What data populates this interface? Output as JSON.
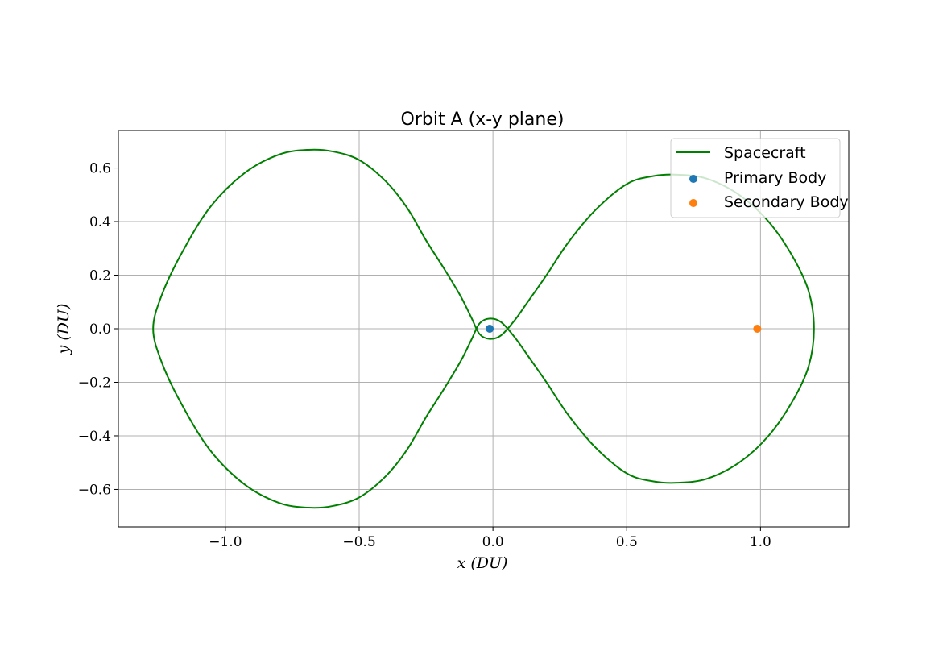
{
  "chart_data": {
    "type": "line",
    "title": "Orbit A (x-y plane)",
    "xlabel": "x (DU)",
    "ylabel": "y (DU)",
    "xlim": [
      -1.4,
      1.33
    ],
    "ylim": [
      -0.74,
      0.74
    ],
    "xticks": [
      -1.0,
      -0.5,
      0.0,
      0.5,
      1.0
    ],
    "xtick_labels": [
      "−1.0",
      "−0.5",
      "0.0",
      "0.5",
      "1.0"
    ],
    "yticks": [
      -0.6,
      -0.4,
      -0.2,
      0.0,
      0.2,
      0.4,
      0.6
    ],
    "ytick_labels": [
      "−0.6",
      "−0.4",
      "−0.2",
      "0.0",
      "0.2",
      "0.4",
      "0.6"
    ],
    "grid": true,
    "legend_position": "top-right",
    "series": [
      {
        "name": "Spacecraft",
        "kind": "line",
        "color": "#008000",
        "x": [
          -0.012,
          0.03,
          0.08,
          0.13,
          0.2,
          0.28,
          0.38,
          0.5,
          0.6,
          0.69,
          0.8,
          0.92,
          1.03,
          1.12,
          1.18,
          1.2,
          1.18,
          1.12,
          1.03,
          0.92,
          0.8,
          0.69,
          0.6,
          0.5,
          0.38,
          0.28,
          0.2,
          0.13,
          0.08,
          0.03,
          -0.012,
          -0.05,
          -0.08,
          -0.12,
          -0.18,
          -0.25,
          -0.32,
          -0.4,
          -0.5,
          -0.6,
          -0.69,
          -0.8,
          -0.93,
          -1.06,
          -1.17,
          -1.24,
          -1.27,
          -1.24,
          -1.17,
          -1.06,
          -0.93,
          -0.8,
          -0.69,
          -0.6,
          -0.5,
          -0.4,
          -0.32,
          -0.25,
          -0.18,
          -0.12,
          -0.08,
          -0.05,
          -0.012
        ],
        "y": [
          0.038,
          0.025,
          -0.03,
          -0.1,
          -0.2,
          -0.32,
          -0.44,
          -0.54,
          -0.57,
          -0.575,
          -0.56,
          -0.5,
          -0.4,
          -0.27,
          -0.14,
          0.0,
          0.14,
          0.27,
          0.4,
          0.5,
          0.56,
          0.575,
          0.57,
          0.54,
          0.44,
          0.32,
          0.2,
          0.1,
          0.03,
          -0.025,
          -0.038,
          -0.02,
          0.04,
          0.12,
          0.22,
          0.33,
          0.45,
          0.55,
          0.63,
          0.662,
          0.668,
          0.65,
          0.58,
          0.45,
          0.27,
          0.12,
          0.0,
          -0.12,
          -0.27,
          -0.45,
          -0.58,
          -0.65,
          -0.668,
          -0.662,
          -0.63,
          -0.55,
          -0.45,
          -0.33,
          -0.22,
          -0.12,
          -0.04,
          0.02,
          0.038
        ]
      },
      {
        "name": "Primary Body",
        "kind": "scatter",
        "color": "#1f77b4",
        "x": [
          -0.012
        ],
        "y": [
          0.0
        ]
      },
      {
        "name": "Secondary Body",
        "kind": "scatter",
        "color": "#ff7f0e",
        "x": [
          0.988
        ],
        "y": [
          0.0
        ]
      }
    ]
  }
}
